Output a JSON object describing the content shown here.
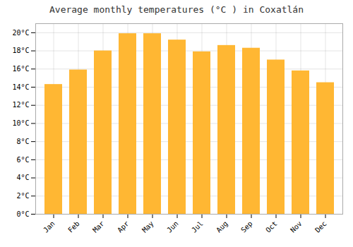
{
  "chart_data": {
    "type": "bar",
    "title": "Average monthly temperatures (°C ) in Coxatlán",
    "categories": [
      "Jan",
      "Feb",
      "Mar",
      "Apr",
      "May",
      "Jun",
      "Jul",
      "Aug",
      "Sep",
      "Oct",
      "Nov",
      "Dec"
    ],
    "values": [
      14.3,
      15.9,
      18.0,
      19.9,
      19.9,
      19.2,
      17.9,
      18.6,
      18.3,
      17.0,
      15.8,
      14.5
    ],
    "color": "#FFB733",
    "ylim": [
      0,
      21
    ],
    "yticks": [
      {
        "value": 0,
        "label": "0°C"
      },
      {
        "value": 2,
        "label": "2°C"
      },
      {
        "value": 4,
        "label": "4°C"
      },
      {
        "value": 6,
        "label": "6°C"
      },
      {
        "value": 8,
        "label": "8°C"
      },
      {
        "value": 10,
        "label": "10°C"
      },
      {
        "value": 12,
        "label": "12°C"
      },
      {
        "value": 14,
        "label": "14°C"
      },
      {
        "value": 16,
        "label": "16°C"
      },
      {
        "value": 18,
        "label": "18°C"
      },
      {
        "value": 20,
        "label": "20°C"
      }
    ],
    "grid": true
  }
}
